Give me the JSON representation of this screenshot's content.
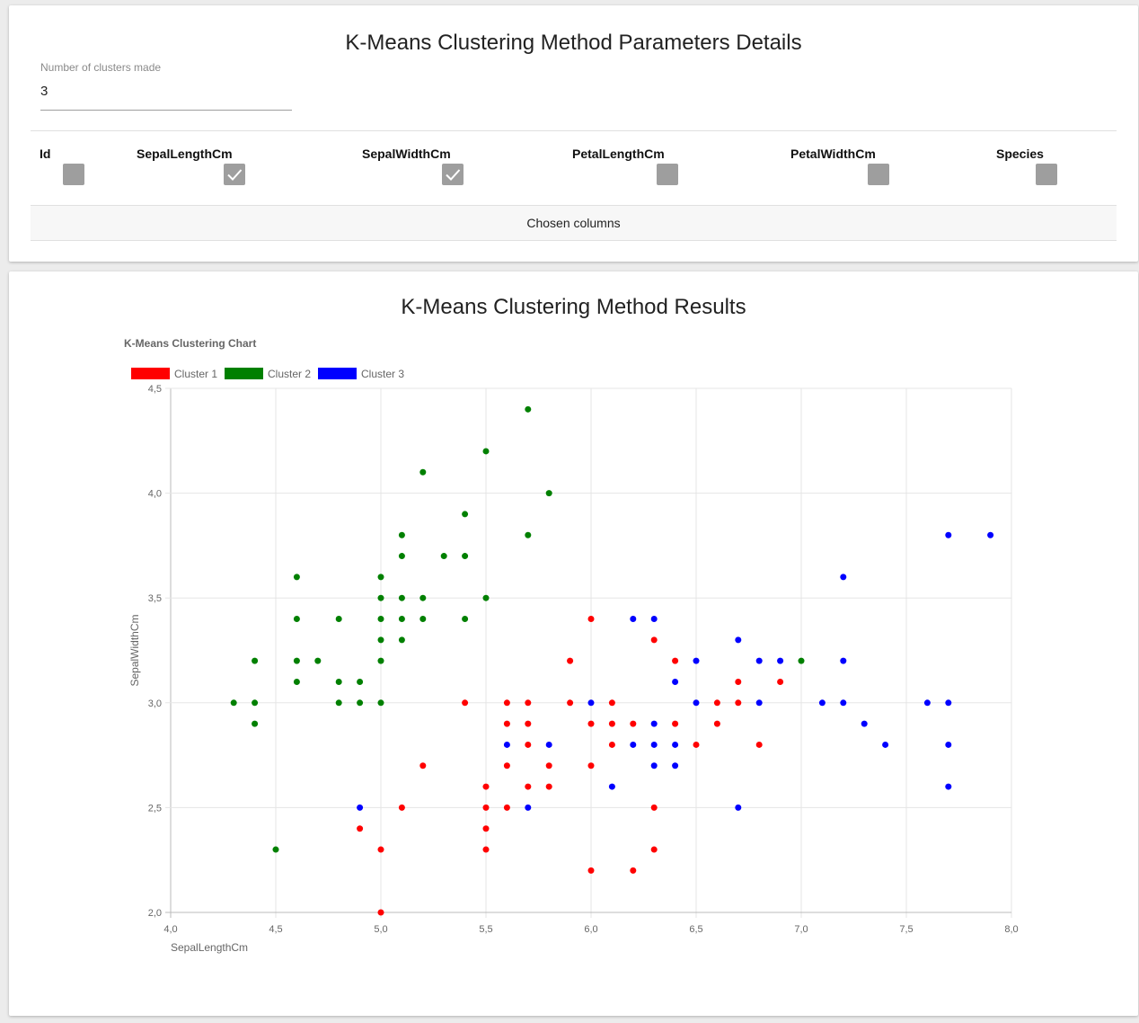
{
  "params": {
    "title": "K-Means Clustering Method Parameters Details",
    "clusters_label": "Number of clusters made",
    "clusters_value": "3",
    "columns": [
      {
        "label": "Id",
        "checked": false
      },
      {
        "label": "SepalLengthCm",
        "checked": true
      },
      {
        "label": "SepalWidthCm",
        "checked": true
      },
      {
        "label": "PetalLengthCm",
        "checked": false
      },
      {
        "label": "PetalWidthCm",
        "checked": false
      },
      {
        "label": "Species",
        "checked": false
      }
    ],
    "chosen_columns_label": "Chosen columns"
  },
  "results": {
    "title": "K-Means Clustering Method Results"
  },
  "chart_data": {
    "type": "scatter",
    "title": "K-Means Clustering Chart",
    "xlabel": "SepalLengthCm",
    "ylabel": "SepalWidthCm",
    "xlim": [
      4.0,
      8.0
    ],
    "ylim": [
      2.0,
      4.5
    ],
    "xticks": [
      "4,0",
      "4,5",
      "5,0",
      "5,5",
      "6,0",
      "6,5",
      "7,0",
      "7,5",
      "8,0"
    ],
    "yticks": [
      "2,0",
      "2,5",
      "3,0",
      "3,5",
      "4,0",
      "4,5"
    ],
    "legend_position": "top-left",
    "grid": true,
    "series": [
      {
        "name": "Cluster 1",
        "color": "#ff0000",
        "points": [
          [
            5.0,
            2.0
          ],
          [
            6.0,
            2.2
          ],
          [
            6.2,
            2.2
          ],
          [
            5.0,
            2.3
          ],
          [
            5.5,
            2.3
          ],
          [
            6.3,
            2.3
          ],
          [
            4.9,
            2.4
          ],
          [
            5.5,
            2.4
          ],
          [
            5.1,
            2.5
          ],
          [
            5.5,
            2.5
          ],
          [
            5.6,
            2.5
          ],
          [
            6.3,
            2.5
          ],
          [
            5.5,
            2.6
          ],
          [
            5.7,
            2.6
          ],
          [
            5.8,
            2.6
          ],
          [
            5.2,
            2.7
          ],
          [
            5.6,
            2.7
          ],
          [
            5.8,
            2.7
          ],
          [
            6.0,
            2.7
          ],
          [
            5.7,
            2.8
          ],
          [
            6.1,
            2.8
          ],
          [
            6.5,
            2.8
          ],
          [
            6.8,
            2.8
          ],
          [
            5.6,
            2.9
          ],
          [
            5.7,
            2.9
          ],
          [
            6.0,
            2.9
          ],
          [
            6.1,
            2.9
          ],
          [
            6.2,
            2.9
          ],
          [
            6.4,
            2.9
          ],
          [
            6.6,
            2.9
          ],
          [
            5.4,
            3.0
          ],
          [
            5.6,
            3.0
          ],
          [
            5.7,
            3.0
          ],
          [
            5.9,
            3.0
          ],
          [
            6.1,
            3.0
          ],
          [
            6.6,
            3.0
          ],
          [
            6.7,
            3.0
          ],
          [
            6.7,
            3.1
          ],
          [
            6.9,
            3.1
          ],
          [
            5.9,
            3.2
          ],
          [
            6.4,
            3.2
          ],
          [
            6.3,
            3.3
          ],
          [
            6.0,
            3.4
          ]
        ]
      },
      {
        "name": "Cluster 2",
        "color": "#008000",
        "points": [
          [
            4.5,
            2.3
          ],
          [
            4.4,
            2.9
          ],
          [
            4.3,
            3.0
          ],
          [
            4.4,
            3.0
          ],
          [
            4.8,
            3.0
          ],
          [
            4.9,
            3.0
          ],
          [
            5.0,
            3.0
          ],
          [
            4.6,
            3.1
          ],
          [
            4.8,
            3.1
          ],
          [
            4.9,
            3.1
          ],
          [
            4.4,
            3.2
          ],
          [
            4.6,
            3.2
          ],
          [
            4.7,
            3.2
          ],
          [
            5.0,
            3.2
          ],
          [
            7.0,
            3.2
          ],
          [
            5.0,
            3.3
          ],
          [
            5.1,
            3.3
          ],
          [
            4.6,
            3.4
          ],
          [
            4.8,
            3.4
          ],
          [
            5.0,
            3.4
          ],
          [
            5.1,
            3.4
          ],
          [
            5.2,
            3.4
          ],
          [
            5.4,
            3.4
          ],
          [
            5.0,
            3.5
          ],
          [
            5.1,
            3.5
          ],
          [
            5.2,
            3.5
          ],
          [
            5.5,
            3.5
          ],
          [
            4.6,
            3.6
          ],
          [
            5.0,
            3.6
          ],
          [
            5.1,
            3.7
          ],
          [
            5.3,
            3.7
          ],
          [
            5.4,
            3.7
          ],
          [
            5.1,
            3.8
          ],
          [
            5.7,
            3.8
          ],
          [
            5.4,
            3.9
          ],
          [
            5.8,
            4.0
          ],
          [
            5.2,
            4.1
          ],
          [
            5.5,
            4.2
          ],
          [
            5.7,
            4.4
          ]
        ]
      },
      {
        "name": "Cluster 3",
        "color": "#0000ff",
        "points": [
          [
            4.9,
            2.5
          ],
          [
            5.7,
            2.5
          ],
          [
            6.7,
            2.5
          ],
          [
            6.1,
            2.6
          ],
          [
            7.7,
            2.6
          ],
          [
            6.3,
            2.7
          ],
          [
            6.4,
            2.7
          ],
          [
            5.6,
            2.8
          ],
          [
            5.8,
            2.8
          ],
          [
            6.2,
            2.8
          ],
          [
            6.3,
            2.8
          ],
          [
            6.4,
            2.8
          ],
          [
            7.4,
            2.8
          ],
          [
            7.7,
            2.8
          ],
          [
            6.3,
            2.9
          ],
          [
            7.3,
            2.9
          ],
          [
            6.0,
            3.0
          ],
          [
            6.5,
            3.0
          ],
          [
            6.8,
            3.0
          ],
          [
            7.1,
            3.0
          ],
          [
            7.2,
            3.0
          ],
          [
            7.6,
            3.0
          ],
          [
            7.7,
            3.0
          ],
          [
            6.4,
            3.1
          ],
          [
            6.5,
            3.2
          ],
          [
            6.8,
            3.2
          ],
          [
            6.9,
            3.2
          ],
          [
            7.2,
            3.2
          ],
          [
            6.7,
            3.3
          ],
          [
            6.2,
            3.4
          ],
          [
            6.3,
            3.4
          ],
          [
            7.2,
            3.6
          ],
          [
            7.7,
            3.8
          ],
          [
            7.9,
            3.8
          ]
        ]
      }
    ]
  }
}
